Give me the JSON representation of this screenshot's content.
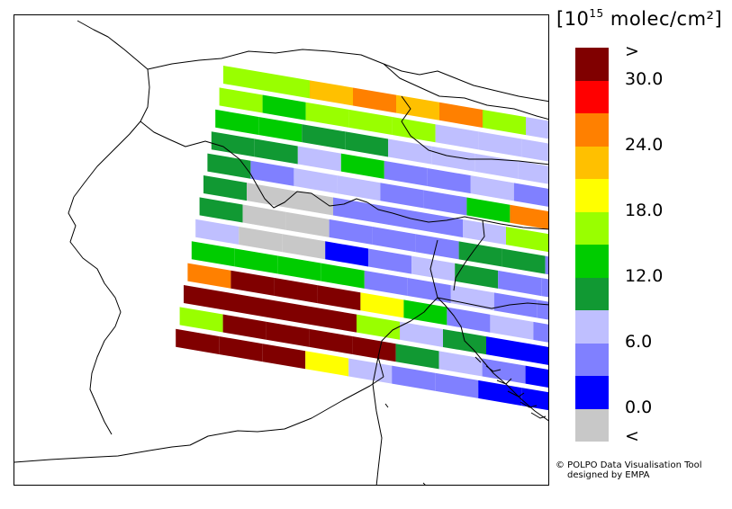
{
  "unit_label": {
    "prefix": "[10",
    "exponent": "15",
    "suffix": " molec/cm²]"
  },
  "legend": {
    "labels": [
      ">",
      "30.0",
      "24.0",
      "18.0",
      "12.0",
      "6.0",
      "0.0",
      "<"
    ],
    "colors": [
      "#800000",
      "#ff0000",
      "#ff8000",
      "#ffc000",
      "#ffff00",
      "#99ff00",
      "#00cc00",
      "#119933",
      "#bfbfff",
      "#8080ff",
      "#0000ff",
      "#c8c8c8"
    ]
  },
  "credits": {
    "line1": "© POLPO Data Visualisation Tool",
    "line2": "designed by EMPA"
  },
  "map_data": {
    "scanlines": [
      [
        "#99ff00",
        "#99ff00",
        "#ffc000",
        "#ff8000",
        "#ffc000",
        "#ff8000",
        "#99ff00",
        "#bfbfff",
        "#bfbfff"
      ],
      [
        "#99ff00",
        "#00cc00",
        "#99ff00",
        "#99ff00",
        "#99ff00",
        "#bfbfff",
        "#bfbfff",
        "#bfbfff",
        "#bfbfff"
      ],
      [
        "#00cc00",
        "#00cc00",
        "#119933",
        "#119933",
        "#bfbfff",
        "#bfbfff",
        "#bfbfff",
        "#bfbfff",
        "#bfbfff"
      ],
      [
        "#119933",
        "#119933",
        "#bfbfff",
        "#00cc00",
        "#8080ff",
        "#8080ff",
        "#bfbfff",
        "#8080ff",
        "#119933"
      ],
      [
        "#119933",
        "#8080ff",
        "#bfbfff",
        "#bfbfff",
        "#8080ff",
        "#8080ff",
        "#00cc00",
        "#ff8000",
        "#bfbfff"
      ],
      [
        "#119933",
        "#c8c8c8",
        "#c8c8c8",
        "#8080ff",
        "#8080ff",
        "#8080ff",
        "#bfbfff",
        "#99ff00",
        "#119933"
      ],
      [
        "#119933",
        "#c8c8c8",
        "#c8c8c8",
        "#8080ff",
        "#8080ff",
        "#8080ff",
        "#119933",
        "#119933",
        "#8080ff"
      ],
      [
        "#bfbfff",
        "#c8c8c8",
        "#c8c8c8",
        "#0000ff",
        "#8080ff",
        "#bfbfff",
        "#119933",
        "#8080ff",
        "#8080ff"
      ],
      [
        "#00cc00",
        "#00cc00",
        "#00cc00",
        "#00cc00",
        "#8080ff",
        "#8080ff",
        "#bfbfff",
        "#8080ff",
        "#8080ff"
      ],
      [
        "#ff8000",
        "#800000",
        "#800000",
        "#800000",
        "#ffff00",
        "#00cc00",
        "#8080ff",
        "#bfbfff",
        "#8080ff"
      ],
      [
        "#800000",
        "#800000",
        "#800000",
        "#800000",
        "#99ff00",
        "#bfbfff",
        "#119933",
        "#0000ff",
        "#0000ff"
      ],
      [
        "#99ff00",
        "#800000",
        "#800000",
        "#800000",
        "#800000",
        "#119933",
        "#bfbfff",
        "#8080ff",
        "#0000ff"
      ],
      [
        "#800000",
        "#800000",
        "#800000",
        "#ffff00",
        "#bfbfff",
        "#8080ff",
        "#8080ff",
        "#0000ff",
        "#0000ff"
      ]
    ]
  }
}
